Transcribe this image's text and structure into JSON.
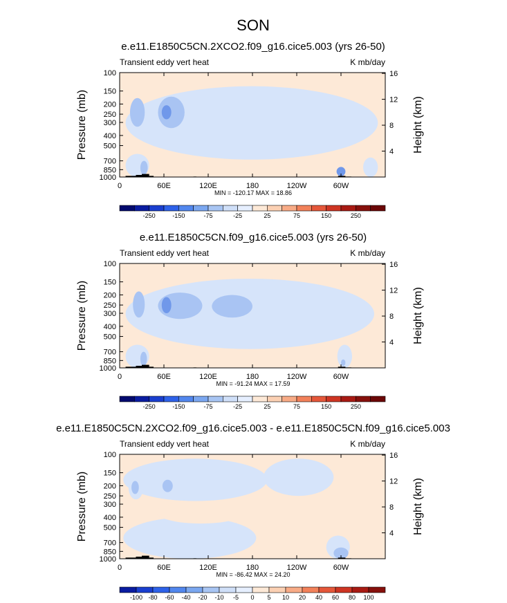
{
  "figure": {
    "title": "SON"
  },
  "chart_data": [
    {
      "type": "heatmap",
      "title": "e.e11.E1850C5CN.2XCO2.f09_g16.cice5.003 (yrs 26-50)",
      "left_label": "Transient eddy vert heat",
      "units": "K mb/day",
      "ylabel": "Pressure (mb)",
      "ylabel_right": "Height (km)",
      "x_ticks": [
        "0",
        "60E",
        "120E",
        "180",
        "120W",
        "60W"
      ],
      "y_ticks": [
        "100",
        "150",
        "200",
        "250",
        "300",
        "400",
        "500",
        "700",
        "850",
        "1000"
      ],
      "y_ticks_right": [
        "16",
        "12",
        "8",
        "4"
      ],
      "ylim": [
        1000,
        100
      ],
      "xlim": [
        0,
        360
      ],
      "min_max_text": "MIN = -120.17  MAX =  18.86",
      "min": -120.17,
      "max": 18.86,
      "colorbar_levels": [
        "-250",
        "-150",
        "-75",
        "-25",
        "25",
        "75",
        "150",
        "250"
      ],
      "regions": [
        {
          "x": [
            0,
            360
          ],
          "p": [
            100,
            1000
          ],
          "value": 10
        },
        {
          "x": [
            8,
            350
          ],
          "p": [
            135,
            680
          ],
          "value": -12
        },
        {
          "x": [
            330,
            350
          ],
          "p": [
            650,
            1000
          ],
          "value": -12
        },
        {
          "x": [
            8,
            40
          ],
          "p": [
            600,
            1000
          ],
          "value": -12
        },
        {
          "x": [
            14,
            34
          ],
          "p": [
            175,
            330
          ],
          "value": -40
        },
        {
          "x": [
            52,
            88
          ],
          "p": [
            170,
            340
          ],
          "value": -40
        },
        {
          "x": [
            57,
            70
          ],
          "p": [
            205,
            280
          ],
          "value": -90
        },
        {
          "x": [
            28,
            38
          ],
          "p": [
            700,
            950
          ],
          "value": -40
        },
        {
          "x": [
            294,
            306
          ],
          "p": [
            800,
            980
          ],
          "value": -90
        }
      ]
    },
    {
      "type": "heatmap",
      "title": "e.e11.E1850C5CN.f09_g16.cice5.003 (yrs 26-50)",
      "left_label": "Transient eddy vert heat",
      "units": "K mb/day",
      "ylabel": "Pressure (mb)",
      "ylabel_right": "Height (km)",
      "x_ticks": [
        "0",
        "60E",
        "120E",
        "180",
        "120W",
        "60W"
      ],
      "y_ticks": [
        "100",
        "150",
        "200",
        "250",
        "300",
        "400",
        "500",
        "700",
        "850",
        "1000"
      ],
      "y_ticks_right": [
        "16",
        "12",
        "8",
        "4"
      ],
      "ylim": [
        1000,
        100
      ],
      "xlim": [
        0,
        360
      ],
      "min_max_text": "MIN = -91.24  MAX =  17.59",
      "min": -91.24,
      "max": 17.59,
      "colorbar_levels": [
        "-250",
        "-150",
        "-75",
        "-25",
        "25",
        "75",
        "150",
        "250"
      ],
      "regions": [
        {
          "x": [
            0,
            360
          ],
          "p": [
            100,
            1000
          ],
          "value": 10
        },
        {
          "x": [
            8,
            345
          ],
          "p": [
            140,
            660
          ],
          "value": -12
        },
        {
          "x": [
            8,
            40
          ],
          "p": [
            600,
            1000
          ],
          "value": -12
        },
        {
          "x": [
            295,
            315
          ],
          "p": [
            600,
            1000
          ],
          "value": -12
        },
        {
          "x": [
            18,
            34
          ],
          "p": [
            185,
            330
          ],
          "value": -40
        },
        {
          "x": [
            52,
            112
          ],
          "p": [
            190,
            340
          ],
          "value": -40
        },
        {
          "x": [
            125,
            180
          ],
          "p": [
            200,
            330
          ],
          "value": -40
        },
        {
          "x": [
            57,
            70
          ],
          "p": [
            210,
            300
          ],
          "value": -90
        },
        {
          "x": [
            28,
            37
          ],
          "p": [
            700,
            960
          ],
          "value": -40
        },
        {
          "x": [
            300,
            306
          ],
          "p": [
            830,
            960
          ],
          "value": -40
        }
      ]
    },
    {
      "type": "heatmap",
      "title": "e.e11.E1850C5CN.2XCO2.f09_g16.cice5.003 - e.e11.E1850C5CN.f09_g16.cice5.003",
      "left_label": "Transient eddy vert heat",
      "units": "K mb/day",
      "ylabel": "Pressure (mb)",
      "ylabel_right": "Height (km)",
      "x_ticks": [
        "0",
        "60E",
        "120E",
        "180",
        "120W",
        "60W"
      ],
      "y_ticks": [
        "100",
        "150",
        "200",
        "250",
        "300",
        "400",
        "500",
        "700",
        "850",
        "1000"
      ],
      "y_ticks_right": [
        "16",
        "12",
        "8",
        "4"
      ],
      "ylim": [
        1000,
        100
      ],
      "xlim": [
        0,
        360
      ],
      "min_max_text": "MIN = -86.42  MAX =  24.20",
      "min": -86.42,
      "max": 24.2,
      "colorbar_levels": [
        "-100",
        "-80",
        "-60",
        "-40",
        "-20",
        "-10",
        "-5",
        "0",
        "5",
        "10",
        "20",
        "40",
        "60",
        "80",
        "100"
      ],
      "regions": [
        {
          "x": [
            0,
            360
          ],
          "p": [
            100,
            1000
          ],
          "value": 2
        },
        {
          "x": [
            5,
            200
          ],
          "p": [
            110,
            280
          ],
          "value": -3
        },
        {
          "x": [
            5,
            185
          ],
          "p": [
            400,
            1000
          ],
          "value": -3
        },
        {
          "x": [
            195,
            290
          ],
          "p": [
            110,
            250
          ],
          "value": -3
        },
        {
          "x": [
            280,
            312
          ],
          "p": [
            600,
            1000
          ],
          "value": -3
        },
        {
          "x": [
            12,
            32
          ],
          "p": [
            160,
            270
          ],
          "value": -12
        },
        {
          "x": [
            16,
            26
          ],
          "p": [
            180,
            240
          ],
          "value": -30
        },
        {
          "x": [
            52,
            98
          ],
          "p": [
            150,
            260
          ],
          "value": -12
        },
        {
          "x": [
            58,
            72
          ],
          "p": [
            175,
            230
          ],
          "value": -30
        },
        {
          "x": [
            100,
            122
          ],
          "p": [
            150,
            260
          ],
          "value": -12
        },
        {
          "x": [
            50,
            170
          ],
          "p": [
            280,
            460
          ],
          "value": 7
        },
        {
          "x": [
            56,
            100
          ],
          "p": [
            300,
            400
          ],
          "value": 15
        },
        {
          "x": [
            110,
            140
          ],
          "p": [
            300,
            400
          ],
          "value": 15
        },
        {
          "x": [
            292,
            308
          ],
          "p": [
            280,
            460
          ],
          "value": 15
        },
        {
          "x": [
            15,
            110
          ],
          "p": [
            650,
            820
          ],
          "value": -12
        },
        {
          "x": [
            290,
            310
          ],
          "p": [
            780,
            1000
          ],
          "value": -30
        },
        {
          "x": [
            295,
            303
          ],
          "p": [
            850,
            990
          ],
          "value": -70
        }
      ]
    }
  ]
}
